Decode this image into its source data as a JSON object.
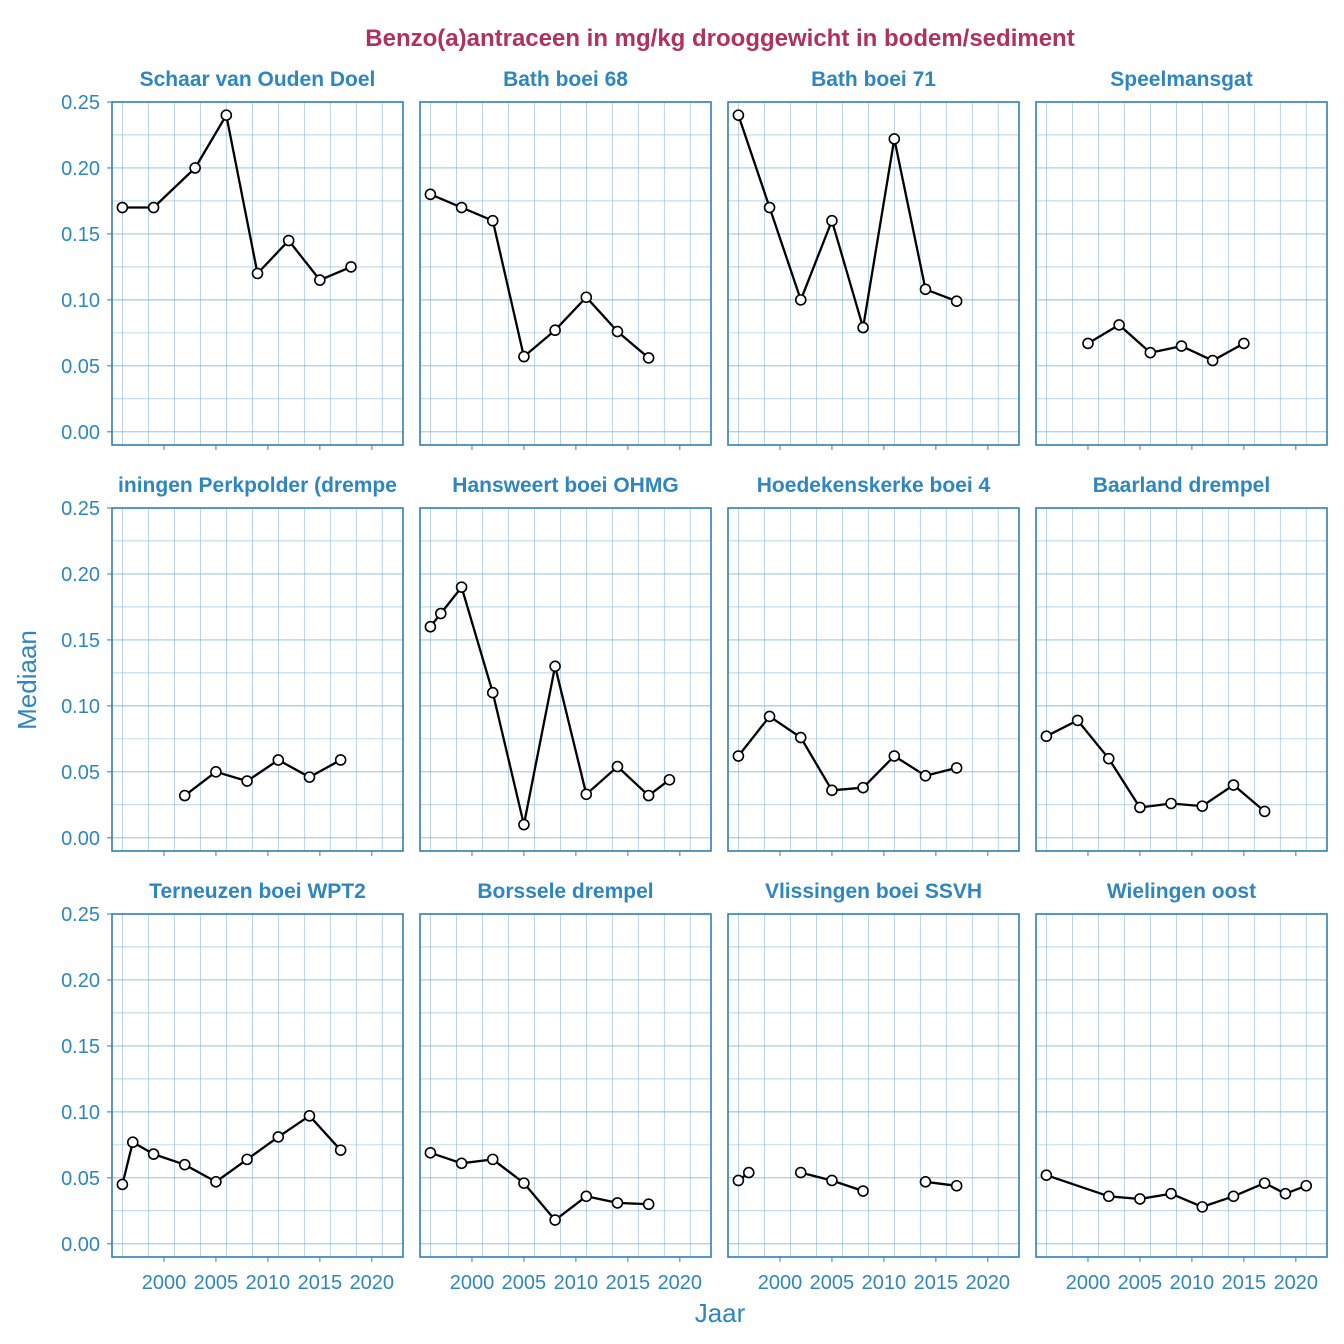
{
  "chart_data": {
    "type": "line",
    "title": "Benzo(a)antraceen in mg/kg drooggewicht in bodem/sediment",
    "xlabel": "Jaar",
    "ylabel": "Mediaan",
    "xlim": [
      1995,
      2023
    ],
    "ylim": [
      -0.01,
      0.25
    ],
    "x_ticks": [
      2000,
      2005,
      2010,
      2015,
      2020
    ],
    "x_tick_labels": [
      "2000",
      "2005",
      "2010",
      "2015",
      "2020"
    ],
    "y_ticks": [
      0.0,
      0.05,
      0.1,
      0.15,
      0.2,
      0.25
    ],
    "y_tick_labels": [
      "0.00",
      "0.05",
      "0.10",
      "0.15",
      "0.20",
      "0.25"
    ],
    "grid": true,
    "colors": {
      "title": "#b03060",
      "axis_text": "#2e86c1",
      "grid": "#6fa8d6",
      "panel_border": "#2f7fb5",
      "line": "#000000",
      "point_fill": "#ffffff"
    },
    "panels": [
      {
        "name": "Schaar van Ouden Doel",
        "segments": [
          [
            [
              1996,
              0.17
            ],
            [
              1999,
              0.17
            ],
            [
              2003,
              0.2
            ],
            [
              2006,
              0.24
            ],
            [
              2009,
              0.12
            ],
            [
              2012,
              0.145
            ],
            [
              2015,
              0.115
            ],
            [
              2018,
              0.125
            ]
          ]
        ]
      },
      {
        "name": "Bath boei 68",
        "segments": [
          [
            [
              1996,
              0.18
            ],
            [
              1999,
              0.17
            ],
            [
              2002,
              0.16
            ],
            [
              2005,
              0.057
            ],
            [
              2008,
              0.077
            ],
            [
              2011,
              0.102
            ],
            [
              2014,
              0.076
            ],
            [
              2017,
              0.056
            ]
          ]
        ]
      },
      {
        "name": "Bath boei 71",
        "segments": [
          [
            [
              1996,
              0.24
            ],
            [
              1999,
              0.17
            ],
            [
              2002,
              0.1
            ],
            [
              2005,
              0.16
            ],
            [
              2008,
              0.079
            ],
            [
              2011,
              0.222
            ],
            [
              2014,
              0.108
            ],
            [
              2017,
              0.099
            ]
          ]
        ]
      },
      {
        "name": "Speelmansgat",
        "segments": [
          [
            [
              2000,
              0.067
            ],
            [
              2003,
              0.081
            ],
            [
              2006,
              0.06
            ],
            [
              2009,
              0.065
            ],
            [
              2012,
              0.054
            ],
            [
              2015,
              0.067
            ]
          ]
        ]
      },
      {
        "name": "Hansweert boei OHMG",
        "segments": [
          [
            [
              1996,
              0.16
            ],
            [
              1997,
              0.17
            ],
            [
              1999,
              0.19
            ],
            [
              2002,
              0.11
            ],
            [
              2005,
              0.01
            ],
            [
              2008,
              0.13
            ],
            [
              2011,
              0.033
            ],
            [
              2014,
              0.054
            ],
            [
              2017,
              0.032
            ],
            [
              2019,
              0.044
            ]
          ]
        ]
      },
      {
        "name": "Hoedekenskerke boei 4",
        "segments": [
          [
            [
              1996,
              0.062
            ],
            [
              1999,
              0.092
            ],
            [
              2002,
              0.076
            ],
            [
              2005,
              0.036
            ],
            [
              2008,
              0.038
            ],
            [
              2011,
              0.062
            ],
            [
              2014,
              0.047
            ],
            [
              2017,
              0.053
            ]
          ]
        ]
      },
      {
        "name": "Baarland drempel",
        "segments": [
          [
            [
              1996,
              0.077
            ],
            [
              1999,
              0.089
            ],
            [
              2002,
              0.06
            ],
            [
              2005,
              0.023
            ],
            [
              2008,
              0.026
            ],
            [
              2011,
              0.024
            ],
            [
              2014,
              0.04
            ],
            [
              2017,
              0.02
            ]
          ]
        ]
      },
      {
        "name": "Terneuzen boei WPT2",
        "segments": [
          [
            [
              1996,
              0.045
            ],
            [
              1997,
              0.077
            ],
            [
              1999,
              0.068
            ],
            [
              2002,
              0.06
            ],
            [
              2005,
              0.047
            ],
            [
              2008,
              0.064
            ],
            [
              2011,
              0.081
            ],
            [
              2014,
              0.097
            ],
            [
              2017,
              0.071
            ]
          ]
        ]
      },
      {
        "name": "Borssele drempel",
        "segments": [
          [
            [
              1996,
              0.069
            ],
            [
              1999,
              0.061
            ],
            [
              2002,
              0.064
            ],
            [
              2005,
              0.046
            ],
            [
              2008,
              0.018
            ],
            [
              2011,
              0.036
            ],
            [
              2014,
              0.031
            ],
            [
              2017,
              0.03
            ]
          ]
        ]
      },
      {
        "name": "Vlissingen boei SSVH",
        "segments": [
          [
            [
              1996,
              0.048
            ],
            [
              1997,
              0.054
            ]
          ],
          [
            [
              2002,
              0.054
            ],
            [
              2005,
              0.048
            ],
            [
              2008,
              0.04
            ]
          ],
          [
            [
              2014,
              0.047
            ],
            [
              2017,
              0.044
            ]
          ]
        ]
      },
      {
        "name": "Wielingen oost",
        "segments": [
          [
            [
              1996,
              0.052
            ],
            [
              2002,
              0.036
            ],
            [
              2005,
              0.034
            ],
            [
              2008,
              0.038
            ],
            [
              2011,
              0.028
            ],
            [
              2014,
              0.036
            ],
            [
              2017,
              0.046
            ],
            [
              2019,
              0.038
            ],
            [
              2021,
              0.044
            ]
          ]
        ]
      }
    ],
    "panel_labels": {
      "row2_col1": "iningen Perkpolder (drempe"
    },
    "panel_row2_col1_segments": [
      [
        [
          2002,
          0.032
        ],
        [
          2005,
          0.05
        ],
        [
          2008,
          0.043
        ],
        [
          2011,
          0.059
        ],
        [
          2014,
          0.046
        ],
        [
          2017,
          0.059
        ]
      ]
    ]
  }
}
